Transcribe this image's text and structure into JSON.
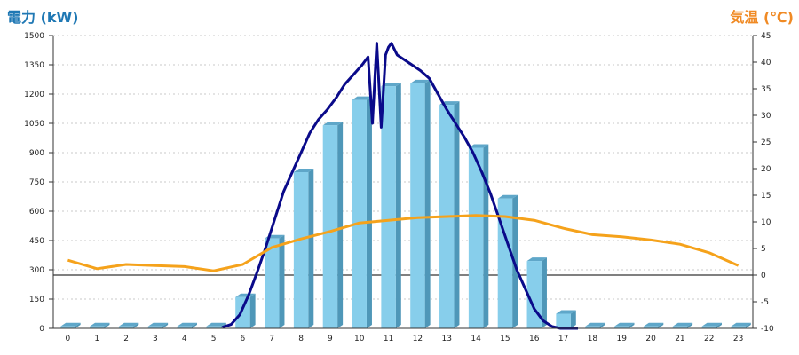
{
  "chart_data": {
    "type": "bar",
    "title_left": "電力 (kW)",
    "title_right": "気温 (℃)",
    "categories": [
      "0",
      "1",
      "2",
      "3",
      "4",
      "5",
      "6",
      "7",
      "8",
      "9",
      "10",
      "11",
      "12",
      "13",
      "14",
      "15",
      "16",
      "17",
      "18",
      "19",
      "20",
      "21",
      "22",
      "23"
    ],
    "series": [
      {
        "kind": "bar",
        "axis": "left",
        "values": [
          10,
          10,
          10,
          10,
          10,
          10,
          160,
          460,
          800,
          1040,
          1170,
          1240,
          1255,
          1145,
          925,
          665,
          345,
          75,
          10,
          10,
          10,
          10,
          10,
          10
        ]
      },
      {
        "kind": "line",
        "axis": "left",
        "color": "#0a0a8a",
        "x": [
          5.3,
          5.6,
          5.9,
          6.2,
          6.5,
          6.8,
          7.1,
          7.4,
          7.7,
          8.0,
          8.3,
          8.6,
          8.9,
          9.2,
          9.5,
          9.8,
          10.1,
          10.3,
          10.45,
          10.6,
          10.75,
          10.9,
          11.0,
          11.1,
          11.3,
          11.5,
          11.8,
          12.1,
          12.4,
          12.7,
          13.0,
          13.3,
          13.6,
          13.9,
          14.2,
          14.5,
          14.8,
          15.1,
          15.4,
          15.7,
          16.0,
          16.3,
          16.6,
          16.9,
          17.2,
          17.5
        ],
        "y": [
          5,
          20,
          70,
          170,
          290,
          420,
          560,
          700,
          800,
          900,
          1000,
          1070,
          1120,
          1180,
          1250,
          1300,
          1350,
          1390,
          1050,
          1460,
          1030,
          1400,
          1440,
          1460,
          1400,
          1380,
          1350,
          1320,
          1280,
          1200,
          1120,
          1050,
          980,
          900,
          800,
          690,
          560,
          430,
          300,
          200,
          100,
          40,
          10,
          0,
          0,
          0
        ]
      },
      {
        "kind": "line",
        "axis": "right",
        "color": "#f5a21b",
        "x": [
          0,
          1,
          2,
          3,
          4,
          5,
          6,
          7,
          8,
          9,
          10,
          11,
          12,
          13,
          14,
          15,
          16,
          17,
          18,
          19,
          20,
          21,
          22,
          23
        ],
        "y": [
          2.8,
          1.2,
          2.0,
          1.8,
          1.6,
          0.8,
          2.0,
          5.2,
          6.8,
          8.2,
          9.8,
          10.3,
          10.8,
          11.0,
          11.2,
          11.0,
          10.3,
          8.8,
          7.6,
          7.2,
          6.6,
          5.8,
          4.2,
          1.8
        ]
      }
    ],
    "y_left": {
      "ticks": [
        "0",
        "150",
        "300",
        "450",
        "600",
        "750",
        "900",
        "1050",
        "1200",
        "1350",
        "1500"
      ],
      "min": 0,
      "max": 1500
    },
    "y_right": {
      "ticks": [
        "-10",
        "-5",
        "0",
        "5",
        "10",
        "15",
        "20",
        "25",
        "30",
        "35",
        "40",
        "45"
      ],
      "min": -10,
      "max": 45
    },
    "grid": true,
    "colors": {
      "bar_face": "#87ceeb",
      "bar_side": "#4f97b8",
      "bar_top": "#5fa7c9",
      "temp_zero_line": "#000000"
    }
  }
}
